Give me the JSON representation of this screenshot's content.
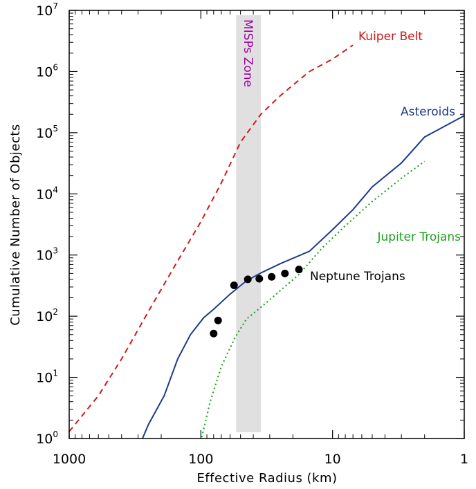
{
  "chart_data": {
    "type": "line",
    "xlabel": "Effective Radius (km)",
    "ylabel": "Cumulative Number of Objects",
    "x_scale": "log-reversed",
    "y_scale": "log",
    "xlim": [
      1000,
      1
    ],
    "ylim": [
      1,
      10000000
    ],
    "x_ticks": [
      {
        "value": 1000,
        "label": "1000"
      },
      {
        "value": 100,
        "label": "100"
      },
      {
        "value": 10,
        "label": "10"
      },
      {
        "value": 1,
        "label": "1"
      }
    ],
    "y_ticks": [
      {
        "value": 1,
        "exp": "0"
      },
      {
        "value": 10,
        "exp": "1"
      },
      {
        "value": 100,
        "exp": "2"
      },
      {
        "value": 1000,
        "exp": "3"
      },
      {
        "value": 10000,
        "exp": "4"
      },
      {
        "value": 100000,
        "exp": "5"
      },
      {
        "value": 1000000,
        "exp": "6"
      },
      {
        "value": 10000000,
        "exp": "7"
      }
    ],
    "y_tick_base": "10",
    "zone": {
      "label": "MISPs Zone",
      "x_from": 54,
      "x_to": 35,
      "color": "#e0e0e0",
      "label_color": "#a000a0"
    },
    "series": [
      {
        "name": "Kuiper Belt",
        "color": "#d01818",
        "style": "dashed",
        "points": [
          [
            1000,
            1.3
          ],
          [
            600,
            5
          ],
          [
            400,
            20
          ],
          [
            250,
            120
          ],
          [
            150,
            800
          ],
          [
            100,
            3500
          ],
          [
            70,
            15000
          ],
          [
            50,
            70000
          ],
          [
            35,
            200000
          ],
          [
            25,
            400000
          ],
          [
            20,
            600000
          ],
          [
            15,
            1000000
          ],
          [
            10,
            1600000
          ],
          [
            7,
            2700000
          ]
        ]
      },
      {
        "name": "Asteroids",
        "color": "#1c3a8c",
        "style": "solid",
        "points": [
          [
            500,
            0.8
          ],
          [
            290,
            0.8
          ],
          [
            250,
            1.7
          ],
          [
            190,
            5
          ],
          [
            150,
            20
          ],
          [
            120,
            50
          ],
          [
            95,
            95
          ],
          [
            80,
            130
          ],
          [
            60,
            230
          ],
          [
            45,
            380
          ],
          [
            35,
            510
          ],
          [
            25,
            720
          ],
          [
            15,
            1150
          ],
          [
            10,
            2600
          ],
          [
            7,
            5500
          ],
          [
            5,
            13000
          ],
          [
            3,
            32000
          ],
          [
            2,
            85000
          ],
          [
            1,
            190000
          ]
        ]
      },
      {
        "name": "Jupiter Trojans",
        "color": "#20a020",
        "style": "dotted",
        "points": [
          [
            100,
            0.9
          ],
          [
            85,
            4
          ],
          [
            70,
            15
          ],
          [
            55,
            45
          ],
          [
            45,
            90
          ],
          [
            35,
            140
          ],
          [
            25,
            260
          ],
          [
            18,
            480
          ],
          [
            12,
            1300
          ],
          [
            8,
            3000
          ],
          [
            5,
            7500
          ],
          [
            3,
            18000
          ],
          [
            2,
            34000
          ]
        ]
      },
      {
        "name": "Neptune Trojans",
        "color": "#000000",
        "style": "markers",
        "points": [
          [
            80,
            52
          ],
          [
            74,
            85
          ],
          [
            56,
            320
          ],
          [
            44,
            400
          ],
          [
            36,
            410
          ],
          [
            29,
            440
          ],
          [
            23,
            500
          ],
          [
            18,
            580
          ]
        ]
      }
    ]
  }
}
